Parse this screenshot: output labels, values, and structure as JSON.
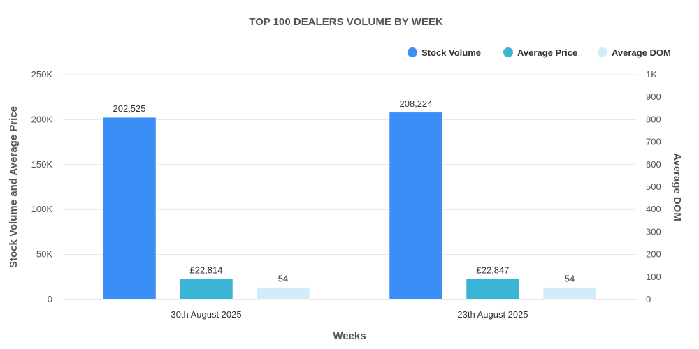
{
  "chart_data": {
    "type": "bar",
    "title": "TOP 100 DEALERS VOLUME BY WEEK",
    "xlabel": "Weeks",
    "ylabel": "Stock Volume and Average Price",
    "y2label": "Average DOM",
    "categories": [
      "30th August 2025",
      "23th August 2025"
    ],
    "ylim": [
      0,
      250000
    ],
    "y2lim": [
      0,
      1000
    ],
    "yticks": [
      {
        "value": 0,
        "label": "0"
      },
      {
        "value": 50000,
        "label": "50K"
      },
      {
        "value": 100000,
        "label": "100K"
      },
      {
        "value": 150000,
        "label": "150K"
      },
      {
        "value": 200000,
        "label": "200K"
      },
      {
        "value": 250000,
        "label": "250K"
      }
    ],
    "y2ticks": [
      {
        "value": 0,
        "label": "0"
      },
      {
        "value": 100,
        "label": "100"
      },
      {
        "value": 200,
        "label": "200"
      },
      {
        "value": 300,
        "label": "300"
      },
      {
        "value": 400,
        "label": "400"
      },
      {
        "value": 500,
        "label": "500"
      },
      {
        "value": 600,
        "label": "600"
      },
      {
        "value": 700,
        "label": "700"
      },
      {
        "value": 800,
        "label": "800"
      },
      {
        "value": 900,
        "label": "900"
      },
      {
        "value": 1000,
        "label": "1K"
      }
    ],
    "legend_position": "top-right",
    "grid": true,
    "series": [
      {
        "name": "Stock Volume",
        "axis": "left",
        "color": "#3a8ef6",
        "values": [
          202525,
          208224
        ],
        "labels": [
          "202,525",
          "208,224"
        ]
      },
      {
        "name": "Average Price",
        "axis": "left",
        "color": "#3ab5d5",
        "values": [
          22814,
          22847
        ],
        "labels": [
          "£22,814",
          "£22,847"
        ]
      },
      {
        "name": "Average DOM",
        "axis": "right",
        "color": "#d3ecfb",
        "values": [
          54,
          54
        ],
        "labels": [
          "54",
          "54"
        ]
      }
    ]
  }
}
